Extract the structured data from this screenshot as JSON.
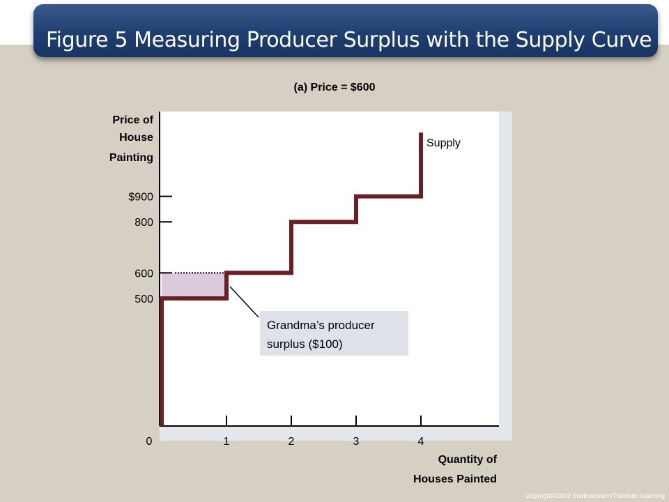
{
  "slide": {
    "title": "Figure 5 Measuring Producer Surplus with the Supply Curve",
    "footer": "Copyright©2003  Southwestern/Thomson Learning"
  },
  "chart_data": {
    "type": "line",
    "title": "(a) Price = $600",
    "ylabel_lines": [
      "Price of",
      "House",
      "Painting"
    ],
    "xlabel_lines": [
      "Quantity of",
      "Houses Painted"
    ],
    "x_ticks": [
      "0",
      "1",
      "2",
      "3",
      "4"
    ],
    "y_ticks": [
      {
        "value": 500,
        "label": "500"
      },
      {
        "value": 600,
        "label": "600"
      },
      {
        "value": 800,
        "label": "800"
      },
      {
        "value": 900,
        "label": "$900"
      }
    ],
    "series": [
      {
        "name": "Supply",
        "step_points": [
          [
            0,
            0
          ],
          [
            0,
            500
          ],
          [
            1,
            500
          ],
          [
            1,
            600
          ],
          [
            2,
            600
          ],
          [
            2,
            800
          ],
          [
            3,
            800
          ],
          [
            3,
            900
          ],
          [
            4,
            900
          ],
          [
            4,
            1150
          ]
        ]
      }
    ],
    "price_line": 600,
    "shaded_region": {
      "x": [
        0,
        1
      ],
      "y": [
        500,
        600
      ]
    },
    "annotation_lines": [
      "Grandma’s producer",
      "surplus ($100)"
    ],
    "xlim": [
      0,
      5.2
    ],
    "ylim": [
      0,
      1220
    ],
    "colors": {
      "supply": "#6b1e24",
      "surplus": "#dcc9dc",
      "plot_bg": "#ffffff"
    }
  }
}
